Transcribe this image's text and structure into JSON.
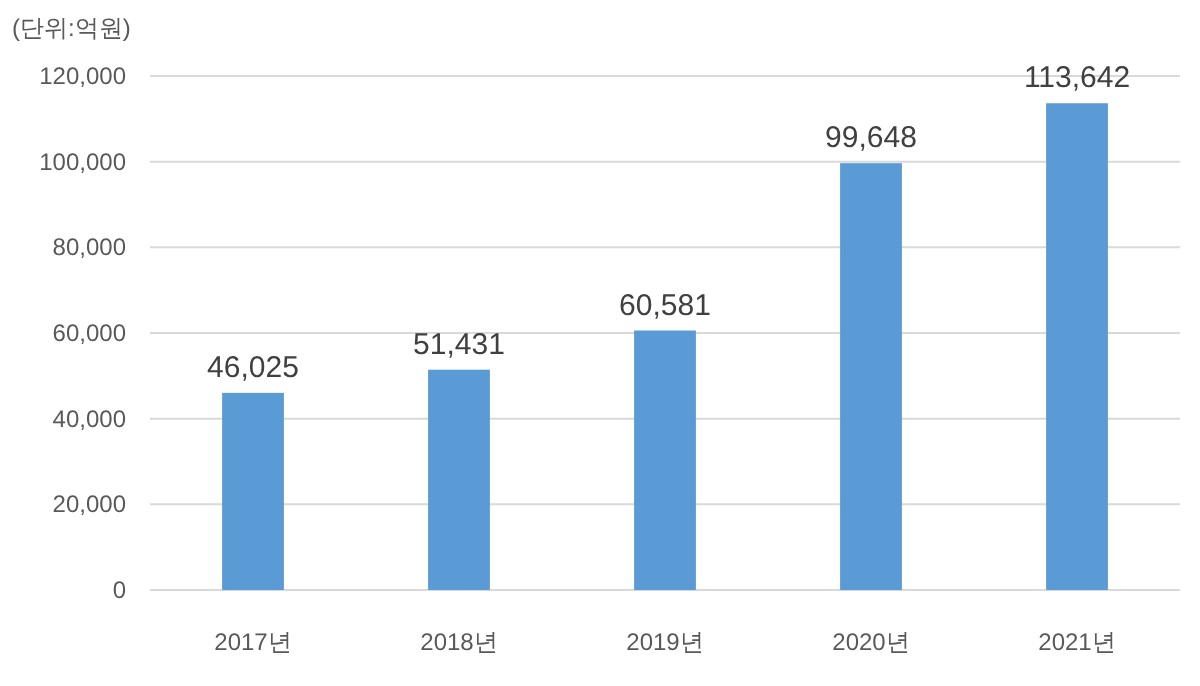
{
  "chart_data": {
    "type": "bar",
    "ylabel": "(단위:억원)",
    "categories": [
      "2017년",
      "2018년",
      "2019년",
      "2020년",
      "2021년"
    ],
    "values": [
      46025,
      51431,
      60581,
      99648,
      113642
    ],
    "value_labels": [
      "46,025",
      "51,431",
      "60,581",
      "99,648",
      "113,642"
    ],
    "color": "#5b9bd5",
    "ylim": [
      0,
      120000
    ],
    "yticks": [
      {
        "value": 0,
        "label": "0"
      },
      {
        "value": 20000,
        "label": "20,000"
      },
      {
        "value": 40000,
        "label": "40,000"
      },
      {
        "value": 60000,
        "label": "60,000"
      },
      {
        "value": 80000,
        "label": "80,000"
      },
      {
        "value": 100000,
        "label": "100,000"
      },
      {
        "value": 120000,
        "label": "120,000"
      }
    ],
    "grid": "y"
  }
}
